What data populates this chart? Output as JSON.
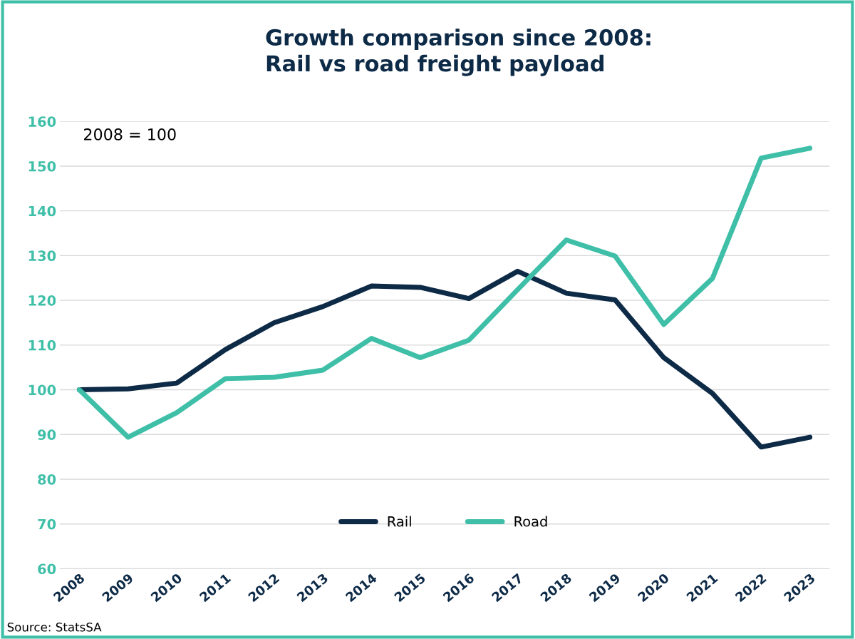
{
  "chart_data": {
    "type": "line",
    "title": "Growth comparison since 2008:\nRail vs road freight payload",
    "categories": [
      "2008",
      "2009",
      "2010",
      "2011",
      "2012",
      "2013",
      "2014",
      "2015",
      "2016",
      "2017",
      "2018",
      "2019",
      "2020",
      "2021",
      "2022",
      "2023"
    ],
    "series": [
      {
        "name": "Rail",
        "color": "#0d2a47",
        "values": [
          100,
          100.2,
          101.5,
          109,
          115,
          118.6,
          123.2,
          122.9,
          120.4,
          126.5,
          121.6,
          120.1,
          107.2,
          99.2,
          87.2,
          89.4
        ]
      },
      {
        "name": "Road",
        "color": "#3fbfa8",
        "values": [
          100,
          89.4,
          94.9,
          102.5,
          102.8,
          104.4,
          111.5,
          107.2,
          111.1,
          122.4,
          133.5,
          129.9,
          114.6,
          124.9,
          151.8,
          154
        ]
      }
    ],
    "ylim": [
      60,
      160
    ],
    "yticks": [
      60,
      70,
      80,
      90,
      100,
      110,
      120,
      130,
      140,
      150,
      160
    ],
    "grid": "y",
    "legend": "bottom",
    "marker": "none",
    "line_style": "solid",
    "annotations": [
      "2008 = 100",
      "Source: StatsSA"
    ]
  }
}
